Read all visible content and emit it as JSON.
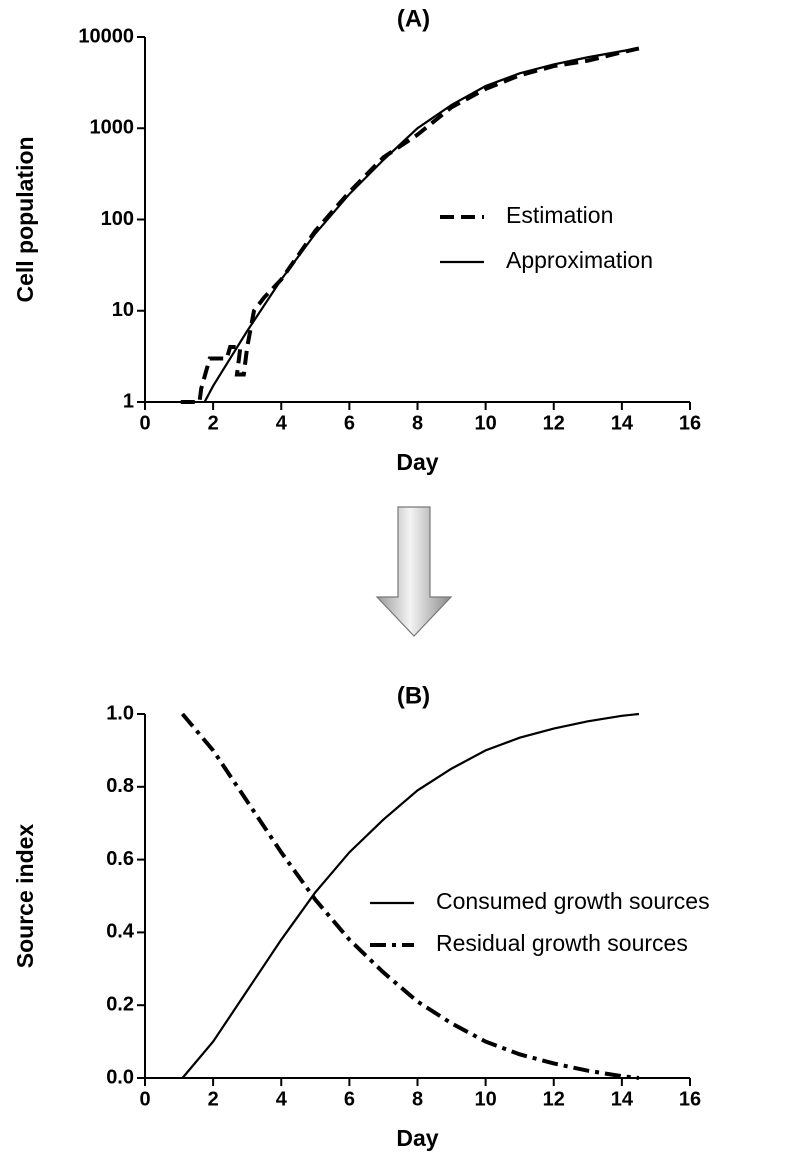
{
  "chart_data": [
    {
      "type": "line",
      "title": "(A)",
      "x_label": "Day",
      "y_label": "Cell population",
      "yscale": "log",
      "xlim": [
        0,
        16
      ],
      "xticks": [
        0,
        2,
        4,
        6,
        8,
        10,
        12,
        14,
        16
      ],
      "ylim": [
        1,
        10000
      ],
      "yticks": [
        1,
        10,
        100,
        1000,
        10000
      ],
      "legend": "right",
      "series": [
        {
          "name": "Estimation",
          "color": "#000000",
          "dash": "dashed",
          "x": [
            1.05,
            1.6,
            1.65,
            1.9,
            2.4,
            2.5,
            2.8,
            2.7,
            2.9,
            3.0,
            3.2,
            3.5,
            4,
            5,
            6,
            7,
            8,
            9,
            10,
            11,
            12,
            13,
            14,
            14.5
          ],
          "values": [
            1,
            1,
            1.4,
            3,
            3,
            4,
            4,
            2,
            2,
            4,
            10,
            14,
            22,
            75,
            200,
            480,
            850,
            1700,
            2700,
            3800,
            4800,
            5500,
            6800,
            7500
          ]
        },
        {
          "name": "Approximation",
          "color": "#000000",
          "dash": "solid",
          "x": [
            1.75,
            2,
            2.5,
            3,
            4,
            5,
            6,
            7,
            8,
            9,
            10,
            11,
            12,
            13,
            14,
            14.5
          ],
          "values": [
            1,
            1.5,
            3,
            6,
            22,
            70,
            190,
            450,
            1000,
            1800,
            2900,
            4000,
            5000,
            6000,
            7000,
            7500
          ]
        }
      ]
    },
    {
      "type": "line",
      "title": "(B)",
      "x_label": "Day",
      "y_label": "Source index",
      "yscale": "linear",
      "xlim": [
        0,
        16
      ],
      "xticks": [
        0,
        2,
        4,
        6,
        8,
        10,
        12,
        14,
        16
      ],
      "ylim": [
        0,
        1
      ],
      "yticks": [
        {
          "value": 0,
          "label": "0.0"
        },
        0.2,
        0.4,
        0.6,
        0.8,
        {
          "value": 1,
          "label": "1.0"
        }
      ],
      "legend": "right",
      "series": [
        {
          "name": "Consumed growth sources",
          "color": "#000000",
          "dash": "solid",
          "x": [
            1.1,
            2,
            3,
            4,
            5,
            6,
            7,
            8,
            9,
            10,
            11,
            12,
            13,
            14,
            14.5
          ],
          "values": [
            0,
            0.1,
            0.24,
            0.38,
            0.51,
            0.62,
            0.71,
            0.79,
            0.85,
            0.9,
            0.935,
            0.96,
            0.98,
            0.995,
            1
          ]
        },
        {
          "name": "Residual growth sources",
          "color": "#000000",
          "dash": "dashdot",
          "x": [
            1.1,
            2,
            3,
            4,
            5,
            6,
            7,
            8,
            9,
            10,
            11,
            12,
            13,
            14,
            14.5
          ],
          "values": [
            1,
            0.9,
            0.76,
            0.62,
            0.49,
            0.38,
            0.29,
            0.21,
            0.15,
            0.1,
            0.065,
            0.04,
            0.02,
            0.005,
            0
          ]
        }
      ]
    }
  ]
}
